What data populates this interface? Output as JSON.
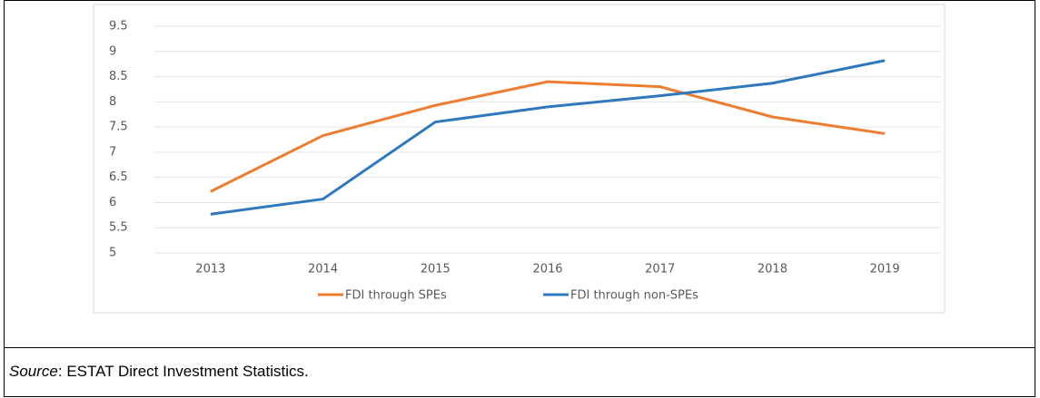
{
  "chart_data": {
    "type": "line",
    "categories": [
      "2013",
      "2014",
      "2015",
      "2016",
      "2017",
      "2018",
      "2019"
    ],
    "series": [
      {
        "name": "FDI through SPEs",
        "color": "#ED7D31",
        "values": [
          6.22,
          7.33,
          7.93,
          8.4,
          8.3,
          7.7,
          7.37
        ]
      },
      {
        "name": "FDI through non-SPEs",
        "color": "#2E78BE",
        "values": [
          5.77,
          6.07,
          7.6,
          7.9,
          8.12,
          8.37,
          8.82
        ]
      }
    ],
    "ylim": [
      5,
      9.5
    ],
    "yticks": [
      5,
      5.5,
      6,
      6.5,
      7,
      7.5,
      8,
      8.5,
      9,
      9.5
    ],
    "grid": true,
    "legend": "bottom"
  },
  "source": {
    "label": "Source",
    "text": ": ESTAT Direct Investment Statistics."
  }
}
